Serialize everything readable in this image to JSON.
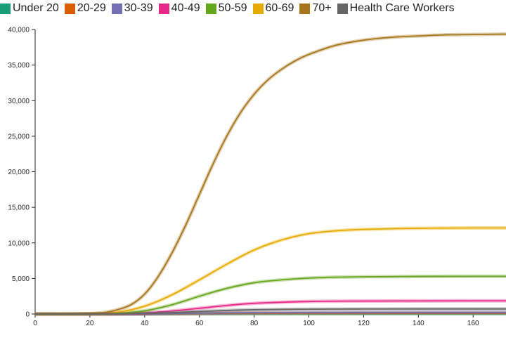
{
  "chart_data": {
    "type": "line",
    "title": "",
    "xlabel": "",
    "ylabel": "",
    "xlim": [
      0,
      172
    ],
    "ylim": [
      0,
      40000
    ],
    "x_ticks": [
      0,
      20,
      40,
      60,
      80,
      100,
      120,
      140,
      160
    ],
    "x_tick_labels": [
      "0",
      "20",
      "40",
      "60",
      "80",
      "100",
      "120",
      "140",
      "160"
    ],
    "y_ticks": [
      0,
      5000,
      10000,
      15000,
      20000,
      25000,
      30000,
      35000,
      40000
    ],
    "y_tick_labels": [
      "0",
      "5,000",
      "10,000",
      "15,000",
      "20,000",
      "25,000",
      "30,000",
      "35,000",
      "40,000"
    ],
    "grid": false,
    "legend_position": "top",
    "series": [
      {
        "name": "Under 20",
        "color": "#1b9e77",
        "x": [
          0,
          20,
          30,
          40,
          50,
          60,
          70,
          80,
          100,
          120,
          140,
          160,
          172
        ],
        "y": [
          0,
          0,
          1,
          3,
          6,
          10,
          14,
          17,
          19,
          20,
          20,
          20,
          20
        ]
      },
      {
        "name": "20-29",
        "color": "#d95f02",
        "x": [
          0,
          20,
          30,
          40,
          50,
          60,
          70,
          80,
          100,
          120,
          140,
          160,
          172
        ],
        "y": [
          0,
          1,
          5,
          15,
          35,
          60,
          85,
          100,
          115,
          118,
          120,
          120,
          120
        ]
      },
      {
        "name": "30-39",
        "color": "#7570b3",
        "x": [
          0,
          20,
          30,
          40,
          50,
          60,
          70,
          80,
          100,
          120,
          140,
          160,
          172
        ],
        "y": [
          0,
          1,
          8,
          25,
          60,
          110,
          160,
          190,
          220,
          230,
          232,
          233,
          233
        ]
      },
      {
        "name": "40-49",
        "color": "#e7298a",
        "x": [
          0,
          20,
          30,
          40,
          50,
          60,
          70,
          80,
          100,
          120,
          140,
          160,
          172
        ],
        "y": [
          0,
          5,
          40,
          150,
          420,
          800,
          1200,
          1500,
          1760,
          1820,
          1840,
          1850,
          1850
        ]
      },
      {
        "name": "50-59",
        "color": "#66a61e",
        "x": [
          0,
          20,
          30,
          40,
          50,
          60,
          70,
          80,
          90,
          100,
          110,
          120,
          140,
          160,
          172
        ],
        "y": [
          0,
          10,
          100,
          450,
          1300,
          2500,
          3600,
          4400,
          4800,
          5050,
          5180,
          5230,
          5280,
          5300,
          5300
        ]
      },
      {
        "name": "60-69",
        "color": "#e6ab02",
        "x": [
          0,
          20,
          30,
          40,
          50,
          60,
          70,
          80,
          90,
          100,
          110,
          120,
          140,
          160,
          172
        ],
        "y": [
          0,
          20,
          250,
          1100,
          2700,
          4800,
          7000,
          9000,
          10400,
          11300,
          11700,
          11900,
          12050,
          12100,
          12100
        ]
      },
      {
        "name": "70+",
        "color": "#a6761d",
        "x": [
          0,
          10,
          20,
          25,
          30,
          35,
          40,
          45,
          50,
          55,
          60,
          65,
          70,
          75,
          80,
          85,
          90,
          95,
          100,
          110,
          120,
          130,
          140,
          150,
          160,
          172
        ],
        "y": [
          0,
          5,
          50,
          200,
          600,
          1300,
          2800,
          5300,
          8600,
          12500,
          16800,
          21100,
          25000,
          28300,
          30900,
          32900,
          34400,
          35600,
          36500,
          37800,
          38500,
          38900,
          39100,
          39250,
          39300,
          39350
        ]
      },
      {
        "name": "Health Care Workers",
        "color": "#666666",
        "x": [
          0,
          20,
          30,
          40,
          50,
          60,
          70,
          80,
          100,
          120,
          140,
          160,
          172
        ],
        "y": [
          0,
          2,
          20,
          80,
          200,
          360,
          500,
          600,
          680,
          700,
          710,
          712,
          712
        ]
      }
    ]
  }
}
